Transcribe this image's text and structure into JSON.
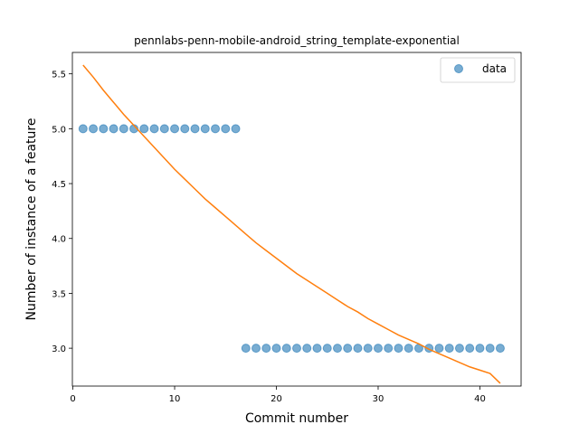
{
  "chart_data": {
    "type": "scatter",
    "title": "pennlabs-penn-mobile-android_string_template-exponential",
    "xlabel": "Commit number",
    "ylabel": "Number of instance of a feature",
    "xlim": [
      -0.05,
      44.05
    ],
    "ylim": [
      2.655,
      5.695
    ],
    "xticks": [
      0,
      10,
      20,
      30,
      40
    ],
    "xtick_labels": [
      "0",
      "10",
      "20",
      "30",
      "40"
    ],
    "yticks": [
      3.0,
      3.5,
      4.0,
      4.5,
      5.0,
      5.5
    ],
    "ytick_labels": [
      "3.0",
      "3.5",
      "4.0",
      "4.5",
      "5.0",
      "5.5"
    ],
    "grid": false,
    "legend_position": "upper right",
    "series": [
      {
        "name": "data",
        "kind": "scatter",
        "color": "#1f77b4",
        "x": [
          1,
          2,
          3,
          4,
          5,
          6,
          7,
          8,
          9,
          10,
          11,
          12,
          13,
          14,
          15,
          16,
          17,
          18,
          19,
          20,
          21,
          22,
          23,
          24,
          25,
          26,
          27,
          28,
          29,
          30,
          31,
          32,
          33,
          34,
          35,
          36,
          37,
          38,
          39,
          40,
          41,
          42
        ],
        "y": [
          5,
          5,
          5,
          5,
          5,
          5,
          5,
          5,
          5,
          5,
          5,
          5,
          5,
          5,
          5,
          5,
          3,
          3,
          3,
          3,
          3,
          3,
          3,
          3,
          3,
          3,
          3,
          3,
          3,
          3,
          3,
          3,
          3,
          3,
          3,
          3,
          3,
          3,
          3,
          3,
          3,
          3
        ]
      },
      {
        "kind": "line",
        "color": "#ff7f0e",
        "x": [
          1,
          2,
          3,
          4,
          5,
          6,
          7,
          8,
          9,
          10,
          11,
          12,
          13,
          14,
          15,
          16,
          17,
          18,
          19,
          20,
          21,
          22,
          23,
          24,
          25,
          26,
          27,
          28,
          29,
          30,
          31,
          32,
          33,
          34,
          35,
          36,
          37,
          38,
          39,
          40,
          41,
          42
        ],
        "y": [
          5.58,
          5.47,
          5.35,
          5.24,
          5.13,
          5.03,
          4.93,
          4.83,
          4.73,
          4.63,
          4.54,
          4.45,
          4.36,
          4.28,
          4.2,
          4.12,
          4.04,
          3.96,
          3.89,
          3.82,
          3.75,
          3.68,
          3.62,
          3.56,
          3.5,
          3.44,
          3.38,
          3.33,
          3.27,
          3.22,
          3.17,
          3.12,
          3.08,
          3.04,
          2.99,
          2.95,
          2.91,
          2.87,
          2.83,
          2.8,
          2.77,
          2.68
        ]
      }
    ]
  }
}
